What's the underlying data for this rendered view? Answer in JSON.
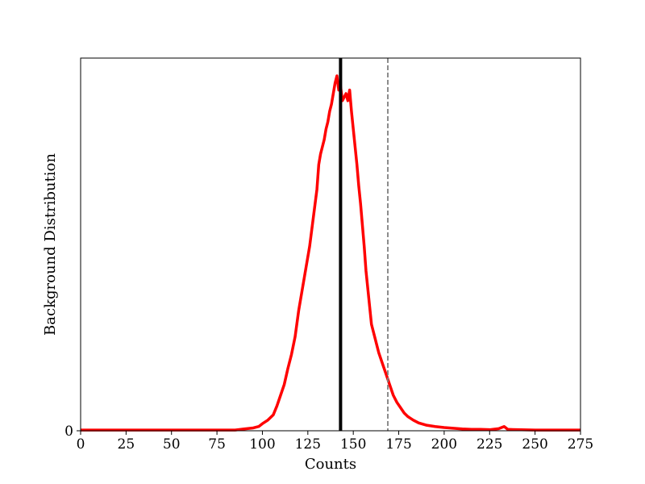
{
  "chart_data": {
    "type": "line",
    "xlabel": "Counts",
    "ylabel": "Background Distribution",
    "xlim": [
      0,
      275
    ],
    "ylim": [
      0,
      1.05
    ],
    "x_ticks": [
      0,
      25,
      50,
      75,
      100,
      125,
      150,
      175,
      200,
      225,
      250,
      275
    ],
    "y_ticks": [
      0
    ],
    "grid": false,
    "series": [
      {
        "color": "#ff0000",
        "x": [
          0,
          85,
          90,
          95,
          98,
          100,
          103,
          106,
          108,
          110,
          112,
          114,
          116,
          118,
          120,
          122,
          124,
          126,
          128,
          130,
          131,
          132,
          133,
          134,
          135,
          136,
          137,
          138,
          139,
          140,
          141,
          142,
          143,
          144,
          145,
          146,
          147,
          148,
          149,
          150,
          151,
          152,
          153,
          154,
          155,
          156,
          157,
          158,
          159,
          160,
          162,
          164,
          166,
          168,
          170,
          172,
          174,
          176,
          178,
          180,
          183,
          186,
          190,
          195,
          200,
          205,
          210,
          215,
          220,
          225,
          230,
          233,
          235,
          240,
          250,
          260,
          275
        ],
        "y": [
          0.002,
          0.002,
          0.005,
          0.008,
          0.012,
          0.02,
          0.03,
          0.045,
          0.07,
          0.1,
          0.13,
          0.175,
          0.215,
          0.265,
          0.34,
          0.4,
          0.46,
          0.52,
          0.6,
          0.68,
          0.75,
          0.78,
          0.8,
          0.82,
          0.85,
          0.87,
          0.9,
          0.92,
          0.95,
          0.98,
          1.0,
          0.96,
          0.97,
          0.93,
          0.94,
          0.95,
          0.93,
          0.96,
          0.9,
          0.85,
          0.8,
          0.75,
          0.69,
          0.64,
          0.58,
          0.52,
          0.45,
          0.4,
          0.35,
          0.3,
          0.26,
          0.22,
          0.19,
          0.16,
          0.13,
          0.1,
          0.08,
          0.065,
          0.05,
          0.04,
          0.03,
          0.022,
          0.016,
          0.012,
          0.009,
          0.007,
          0.005,
          0.004,
          0.004,
          0.003,
          0.006,
          0.012,
          0.004,
          0.003,
          0.002,
          0.002,
          0.002
        ]
      }
    ],
    "vlines": [
      {
        "x": 143,
        "color": "#000000",
        "style": "solid"
      },
      {
        "x": 169,
        "color": "#808080",
        "style": "dashed"
      }
    ]
  }
}
